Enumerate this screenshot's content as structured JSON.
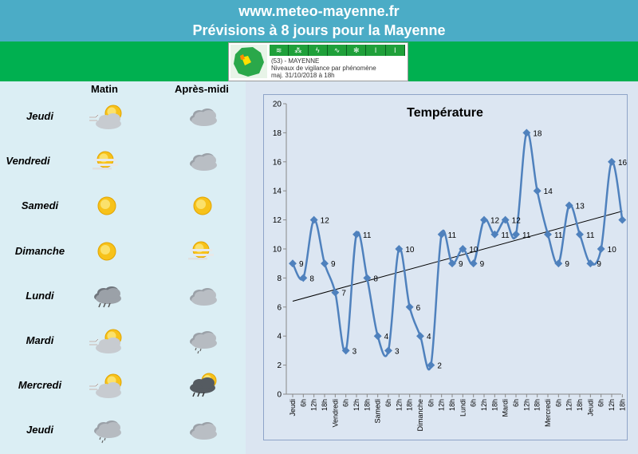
{
  "header": {
    "site": "www.meteo-mayenne.fr",
    "subtitle": "Prévisions à 8 jours pour la Mayenne"
  },
  "vigilance": {
    "line1": "(53) - MAYENNE",
    "line2": "Niveaux de vigilance par phénomène",
    "line3": "maj. 31/10/2018 à 18h",
    "level_color": "#1fa03a"
  },
  "forecast": {
    "col_morning": "Matin",
    "col_afternoon": "Après-midi",
    "days": [
      {
        "name": "Jeudi",
        "morning": "sun-cloud-wind-icon",
        "afternoon": "cloud-icon"
      },
      {
        "name": "Vendredi",
        "morning": "sun-fog-icon",
        "afternoon": "cloud-icon"
      },
      {
        "name": "Samedi",
        "morning": "sun-icon",
        "afternoon": "sun-icon"
      },
      {
        "name": "Dimanche",
        "morning": "sun-icon",
        "afternoon": "sun-fog-icon"
      },
      {
        "name": "Lundi",
        "morning": "rain-cloud-icon",
        "afternoon": "cloud-icon"
      },
      {
        "name": "Mardi",
        "morning": "sun-cloud-wind-icon",
        "afternoon": "drizzle-cloud-icon"
      },
      {
        "name": "Mercredi",
        "morning": "sun-cloud-wind-icon",
        "afternoon": "rain-storm-icon"
      },
      {
        "name": "Jeudi",
        "morning": "drizzle-cloud-icon",
        "afternoon": "cloud-icon"
      }
    ]
  },
  "chart_data": {
    "type": "line",
    "title": "Température",
    "xlabel": "",
    "ylabel": "",
    "ylim": [
      0,
      20
    ],
    "yticks": [
      0,
      2,
      4,
      6,
      8,
      10,
      12,
      14,
      16,
      18,
      20
    ],
    "categories": [
      "Jeudi",
      "6h",
      "12h",
      "18h",
      "Vendredi",
      "6h",
      "12h",
      "18h",
      "Samedi",
      "6h",
      "12h",
      "18h",
      "Dimanche",
      "6h",
      "12h",
      "18h",
      "Lundi",
      "6h",
      "12h",
      "18h",
      "Mardi",
      "6h",
      "12h",
      "18h",
      "Mercredi",
      "6h",
      "12h",
      "18h",
      "Jeudi",
      "6h",
      "12h",
      "18h"
    ],
    "series": [
      {
        "values": [
          9,
          8,
          12,
          9,
          7,
          3,
          11,
          8,
          4,
          3,
          10,
          6,
          4,
          2,
          11,
          9,
          10,
          9,
          12,
          11,
          12,
          11,
          18,
          14,
          11,
          9,
          13,
          11,
          9,
          10,
          16,
          12
        ]
      }
    ],
    "trendline": {
      "type": "linear",
      "from": 6.4,
      "to": 12.6
    },
    "grid": false,
    "legend": "none",
    "colors": {
      "series": "#4f81bd",
      "trend": "#000000"
    }
  }
}
